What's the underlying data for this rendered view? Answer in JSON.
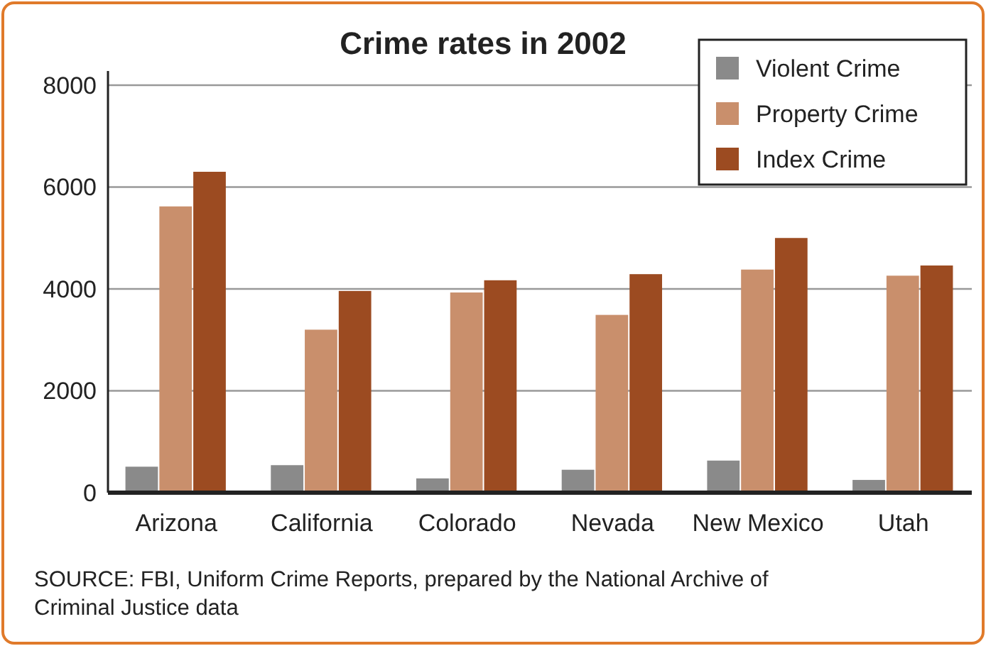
{
  "chart_data": {
    "type": "bar",
    "title": "Crime rates in 2002",
    "categories": [
      "Arizona",
      "California",
      "Colorado",
      "Nevada",
      "New Mexico",
      "Utah"
    ],
    "series": [
      {
        "name": "Violent Crime",
        "color": "#8a8a8a",
        "values": [
          510,
          540,
          280,
          450,
          630,
          250
        ]
      },
      {
        "name": "Property Crime",
        "color": "#c98f6c",
        "values": [
          5620,
          3200,
          3930,
          3490,
          4380,
          4260
        ]
      },
      {
        "name": "Index Crime",
        "color": "#9c4b21",
        "values": [
          6300,
          3960,
          4170,
          4290,
          5000,
          4460
        ]
      }
    ],
    "ylim": [
      0,
      8000
    ],
    "yticks": [
      0,
      2000,
      4000,
      6000,
      8000
    ],
    "grid": "y",
    "legend": "top right",
    "annotations": [
      "SOURCE: FBI, Uniform Crime Reports, prepared by the National Archive of Criminal Justice data"
    ]
  }
}
